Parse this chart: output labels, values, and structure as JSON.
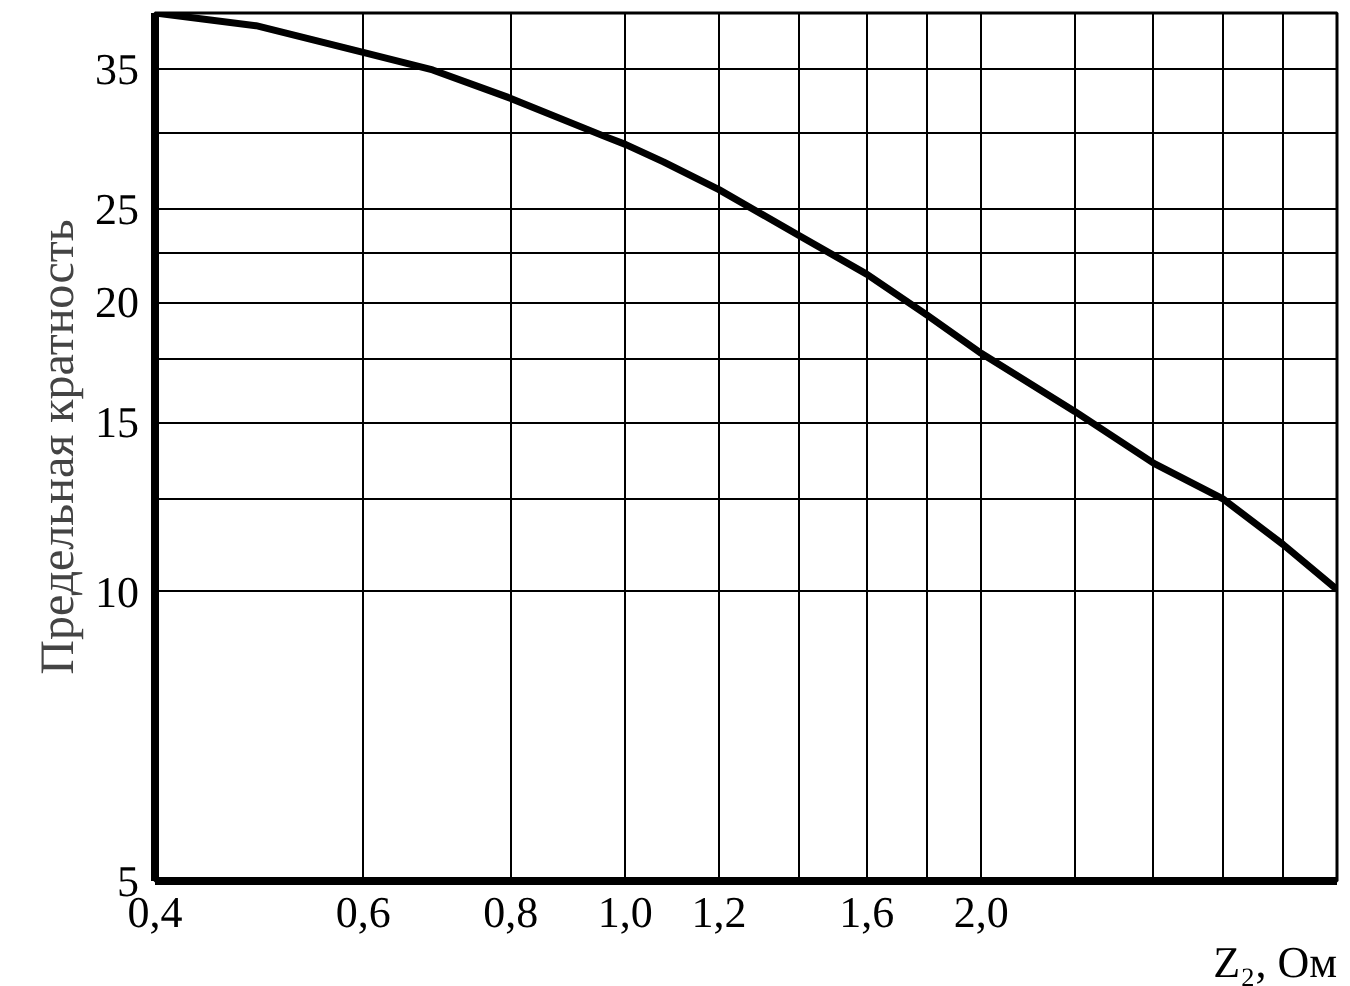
{
  "chart_data": {
    "type": "line",
    "xlabel": "Z₂, Ом",
    "ylabel": "Предельная кратность",
    "log": "xy",
    "grid": true,
    "marker": "none",
    "line_style": "solid",
    "x": [
      0.4,
      0.487,
      0.6,
      0.687,
      0.8,
      0.958,
      1.0,
      1.077,
      1.2,
      1.4,
      1.6,
      1.8,
      2.0,
      2.4,
      2.8,
      3.2,
      3.6,
      4.0
    ],
    "series": [
      {
        "color": "#000000",
        "values": [
          40,
          38.8,
          36.4,
          34.9,
          32.6,
          29.8,
          29.2,
          28.0,
          26.2,
          23.5,
          21.4,
          19.4,
          17.7,
          15.4,
          13.6,
          12.5,
          11.2,
          10.05
        ]
      }
    ],
    "xlim": [
      0.4,
      4.0
    ],
    "ylim": [
      5,
      40
    ],
    "xticks": [
      {
        "value": 0.4,
        "label": "0,4"
      },
      {
        "value": 0.6,
        "label": "0,6"
      },
      {
        "value": 0.8,
        "label": "0,8"
      },
      {
        "value": 1.0,
        "label": "1,0"
      },
      {
        "value": 1.2,
        "label": "1,2"
      },
      {
        "value": 1.4,
        "label": null
      },
      {
        "value": 1.6,
        "label": "1,6"
      },
      {
        "value": 1.8,
        "label": null
      },
      {
        "value": 2.0,
        "label": "2,0"
      },
      {
        "value": 2.4,
        "label": null
      },
      {
        "value": 2.8,
        "label": null
      },
      {
        "value": 3.2,
        "label": null
      },
      {
        "value": 3.6,
        "label": null
      },
      {
        "value": 4.0,
        "label": null
      }
    ],
    "yticks": [
      5,
      10,
      {
        "value": 12.5,
        "label": null
      },
      15,
      {
        "value": 17.5,
        "label": null
      },
      20,
      {
        "value": 22.5,
        "label": null
      },
      25,
      {
        "value": 30,
        "label": null
      },
      35,
      {
        "value": 40,
        "label": null
      }
    ]
  }
}
